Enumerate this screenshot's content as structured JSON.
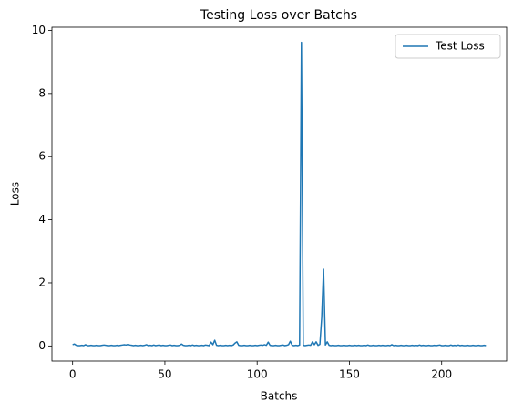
{
  "chart_data": {
    "type": "line",
    "title": "Testing Loss over Batchs",
    "xlabel": "Batchs",
    "ylabel": "Loss",
    "legend": "upper right",
    "grid": false,
    "xlim": [
      -11.2,
      235.2
    ],
    "xticks": [
      0,
      50,
      100,
      150,
      200
    ],
    "ylim": [
      -0.48,
      10.1
    ],
    "yticks": [
      0,
      2,
      4,
      6,
      8,
      10
    ],
    "x": [
      0,
      1,
      2,
      3,
      4,
      5,
      6,
      7,
      8,
      9,
      10,
      11,
      12,
      13,
      14,
      15,
      16,
      17,
      18,
      19,
      20,
      21,
      22,
      23,
      24,
      25,
      26,
      27,
      28,
      29,
      30,
      31,
      32,
      33,
      34,
      35,
      36,
      37,
      38,
      39,
      40,
      41,
      42,
      43,
      44,
      45,
      46,
      47,
      48,
      49,
      50,
      51,
      52,
      53,
      54,
      55,
      56,
      57,
      58,
      59,
      60,
      61,
      62,
      63,
      64,
      65,
      66,
      67,
      68,
      69,
      70,
      71,
      72,
      73,
      74,
      75,
      76,
      77,
      78,
      79,
      80,
      81,
      82,
      83,
      84,
      85,
      86,
      87,
      88,
      89,
      90,
      91,
      92,
      93,
      94,
      95,
      96,
      97,
      98,
      99,
      100,
      101,
      102,
      103,
      104,
      105,
      106,
      107,
      108,
      109,
      110,
      111,
      112,
      113,
      114,
      115,
      116,
      117,
      118,
      119,
      120,
      121,
      122,
      123,
      124,
      125,
      126,
      127,
      128,
      129,
      130,
      131,
      132,
      133,
      134,
      135,
      136,
      137,
      138,
      139,
      140,
      141,
      142,
      143,
      144,
      145,
      146,
      147,
      148,
      149,
      150,
      151,
      152,
      153,
      154,
      155,
      156,
      157,
      158,
      159,
      160,
      161,
      162,
      163,
      164,
      165,
      166,
      167,
      168,
      169,
      170,
      171,
      172,
      173,
      174,
      175,
      176,
      177,
      178,
      179,
      180,
      181,
      182,
      183,
      184,
      185,
      186,
      187,
      188,
      189,
      190,
      191,
      192,
      193,
      194,
      195,
      196,
      197,
      198,
      199,
      200,
      201,
      202,
      203,
      204,
      205,
      206,
      207,
      208,
      209,
      210,
      211,
      212,
      213,
      214,
      215,
      216,
      217,
      218,
      219,
      220,
      221,
      222,
      223,
      224
    ],
    "series": [
      {
        "name": "Test Loss",
        "color": "#1f77b4",
        "values": [
          0.04,
          0.06,
          0.02,
          0.01,
          0.01,
          0.02,
          0.01,
          0.04,
          0.01,
          0.01,
          0.02,
          0.01,
          0.01,
          0.02,
          0.01,
          0.01,
          0.02,
          0.03,
          0.02,
          0.01,
          0.01,
          0.02,
          0.01,
          0.01,
          0.02,
          0.01,
          0.02,
          0.03,
          0.04,
          0.03,
          0.05,
          0.03,
          0.02,
          0.01,
          0.02,
          0.01,
          0.01,
          0.02,
          0.01,
          0.02,
          0.04,
          0.01,
          0.02,
          0.01,
          0.03,
          0.01,
          0.02,
          0.03,
          0.01,
          0.02,
          0.01,
          0.01,
          0.02,
          0.03,
          0.01,
          0.02,
          0.01,
          0.01,
          0.02,
          0.06,
          0.02,
          0.01,
          0.01,
          0.02,
          0.01,
          0.03,
          0.01,
          0.02,
          0.01,
          0.01,
          0.02,
          0.01,
          0.03,
          0.02,
          0.01,
          0.12,
          0.04,
          0.18,
          0.02,
          0.01,
          0.02,
          0.01,
          0.01,
          0.02,
          0.01,
          0.02,
          0.01,
          0.03,
          0.09,
          0.13,
          0.02,
          0.01,
          0.01,
          0.02,
          0.01,
          0.01,
          0.02,
          0.01,
          0.01,
          0.02,
          0.01,
          0.02,
          0.03,
          0.02,
          0.04,
          0.02,
          0.12,
          0.02,
          0.01,
          0.01,
          0.02,
          0.01,
          0.01,
          0.02,
          0.03,
          0.01,
          0.02,
          0.04,
          0.15,
          0.02,
          0.01,
          0.02,
          0.01,
          0.03,
          9.62,
          0.02,
          0.01,
          0.02,
          0.03,
          0.02,
          0.13,
          0.04,
          0.13,
          0.02,
          0.05,
          0.9,
          2.43,
          0.03,
          0.13,
          0.02,
          0.01,
          0.02,
          0.01,
          0.01,
          0.02,
          0.01,
          0.01,
          0.02,
          0.01,
          0.01,
          0.02,
          0.01,
          0.01,
          0.02,
          0.01,
          0.02,
          0.01,
          0.01,
          0.02,
          0.01,
          0.03,
          0.01,
          0.01,
          0.02,
          0.01,
          0.01,
          0.02,
          0.01,
          0.02,
          0.01,
          0.01,
          0.02,
          0.01,
          0.04,
          0.01,
          0.02,
          0.01,
          0.01,
          0.02,
          0.01,
          0.01,
          0.02,
          0.01,
          0.01,
          0.02,
          0.01,
          0.02,
          0.01,
          0.03,
          0.01,
          0.02,
          0.01,
          0.01,
          0.02,
          0.01,
          0.01,
          0.02,
          0.01,
          0.02,
          0.03,
          0.01,
          0.01,
          0.02,
          0.01,
          0.01,
          0.03,
          0.01,
          0.02,
          0.01,
          0.03,
          0.01,
          0.02,
          0.01,
          0.01,
          0.02,
          0.01,
          0.01,
          0.02,
          0.01,
          0.01,
          0.02,
          0.01,
          0.01,
          0.02,
          0.01
        ]
      }
    ]
  }
}
